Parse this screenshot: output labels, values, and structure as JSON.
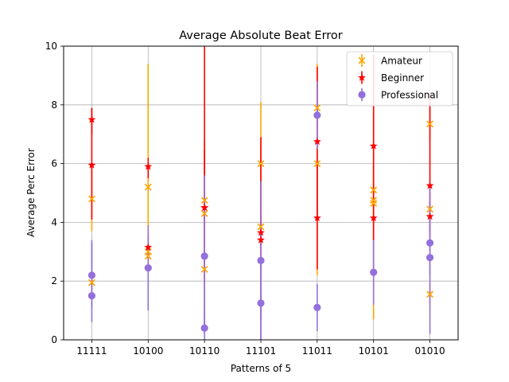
{
  "chart_data": {
    "type": "scatter",
    "title": "Average Absolute Beat Error",
    "xlabel": "Patterns of 5",
    "ylabel": "Average Perc Error",
    "categories": [
      "11111",
      "10100",
      "10110",
      "11101",
      "11011",
      "10101",
      "01010"
    ],
    "ylim": [
      0,
      10
    ],
    "yticks": [
      0,
      2,
      4,
      6,
      8,
      10
    ],
    "grid": true,
    "legend_position": "top-right",
    "series": [
      {
        "name": "Amateur",
        "color": "#ffa500",
        "marker": "x",
        "points": [
          {
            "x": "11111",
            "y": 1.95,
            "lo": 1.6,
            "hi": 2.3
          },
          {
            "x": "11111",
            "y": 4.8,
            "lo": 3.7,
            "hi": 5.9
          },
          {
            "x": "10100",
            "y": 2.85,
            "lo": 2.5,
            "hi": 3.2
          },
          {
            "x": "10100",
            "y": 3.0,
            "lo": 2.6,
            "hi": 3.4
          },
          {
            "x": "10100",
            "y": 5.2,
            "lo": 1.0,
            "hi": 9.4
          },
          {
            "x": "10110",
            "y": 2.4,
            "lo": 2.0,
            "hi": 2.8
          },
          {
            "x": "10110",
            "y": 4.3,
            "lo": 3.0,
            "hi": 5.6
          },
          {
            "x": "10110",
            "y": 4.75,
            "lo": 4.1,
            "hi": 6.8
          },
          {
            "x": "11101",
            "y": 3.85,
            "lo": 3.3,
            "hi": 4.4
          },
          {
            "x": "11101",
            "y": 6.0,
            "lo": 3.9,
            "hi": 8.1
          },
          {
            "x": "11011",
            "y": 6.0,
            "lo": 2.2,
            "hi": 9.4
          },
          {
            "x": "11011",
            "y": 7.9,
            "lo": 7.0,
            "hi": 8.8
          },
          {
            "x": "10101",
            "y": 4.65,
            "lo": 0.7,
            "hi": 8.6
          },
          {
            "x": "10101",
            "y": 4.75,
            "lo": 4.2,
            "hi": 5.3
          },
          {
            "x": "10101",
            "y": 5.1,
            "lo": 4.5,
            "hi": 5.7
          },
          {
            "x": "01010",
            "y": 1.55,
            "lo": 1.2,
            "hi": 1.9
          },
          {
            "x": "01010",
            "y": 4.45,
            "lo": 3.9,
            "hi": 5.0
          },
          {
            "x": "01010",
            "y": 7.35,
            "lo": 6.8,
            "hi": 7.9
          }
        ]
      },
      {
        "name": "Beginner",
        "color": "#ff0000",
        "marker": "star",
        "points": [
          {
            "x": "11111",
            "y": 5.95,
            "lo": 4.1,
            "hi": 7.9
          },
          {
            "x": "11111",
            "y": 7.5,
            "lo": 7.0,
            "hi": 7.9
          },
          {
            "x": "10100",
            "y": 3.15,
            "lo": 2.7,
            "hi": 3.6
          },
          {
            "x": "10100",
            "y": 5.9,
            "lo": 5.5,
            "hi": 6.2
          },
          {
            "x": "10110",
            "y": 4.5,
            "lo": 2.5,
            "hi": 6.5
          },
          {
            "x": "10110",
            "y": 4.5,
            "lo": 0.5,
            "hi": 10.0
          },
          {
            "x": "11101",
            "y": 3.4,
            "lo": 0.7,
            "hi": 6.9
          },
          {
            "x": "11101",
            "y": 3.65,
            "lo": 3.2,
            "hi": 4.1
          },
          {
            "x": "11011",
            "y": 4.15,
            "lo": 2.4,
            "hi": 6.0
          },
          {
            "x": "11011",
            "y": 6.75,
            "lo": 4.1,
            "hi": 9.3
          },
          {
            "x": "10101",
            "y": 4.15,
            "lo": 2.3,
            "hi": 6.0
          },
          {
            "x": "10101",
            "y": 6.6,
            "lo": 3.4,
            "hi": 9.7
          },
          {
            "x": "01010",
            "y": 4.2,
            "lo": 3.7,
            "hi": 4.7
          },
          {
            "x": "01010",
            "y": 5.25,
            "lo": 3.5,
            "hi": 8.4
          }
        ]
      },
      {
        "name": "Professional",
        "color": "#9370db",
        "marker": "circle",
        "points": [
          {
            "x": "11111",
            "y": 1.5,
            "lo": 0.6,
            "hi": 3.4
          },
          {
            "x": "11111",
            "y": 2.2,
            "lo": 1.1,
            "hi": 3.3
          },
          {
            "x": "10100",
            "y": 2.45,
            "lo": 1.0,
            "hi": 3.9
          },
          {
            "x": "10110",
            "y": 0.4,
            "lo": 0.0,
            "hi": 1.0
          },
          {
            "x": "10110",
            "y": 2.85,
            "lo": 0.2,
            "hi": 5.6
          },
          {
            "x": "11101",
            "y": 1.25,
            "lo": 0.0,
            "hi": 2.6
          },
          {
            "x": "11101",
            "y": 2.7,
            "lo": 0.0,
            "hi": 5.4
          },
          {
            "x": "11011",
            "y": 1.1,
            "lo": 0.3,
            "hi": 1.9
          },
          {
            "x": "11011",
            "y": 7.65,
            "lo": 6.5,
            "hi": 8.8
          },
          {
            "x": "10101",
            "y": 2.3,
            "lo": 1.2,
            "hi": 3.4
          },
          {
            "x": "01010",
            "y": 2.8,
            "lo": 0.2,
            "hi": 5.3
          },
          {
            "x": "01010",
            "y": 3.3,
            "lo": 2.2,
            "hi": 4.4
          }
        ]
      }
    ]
  }
}
